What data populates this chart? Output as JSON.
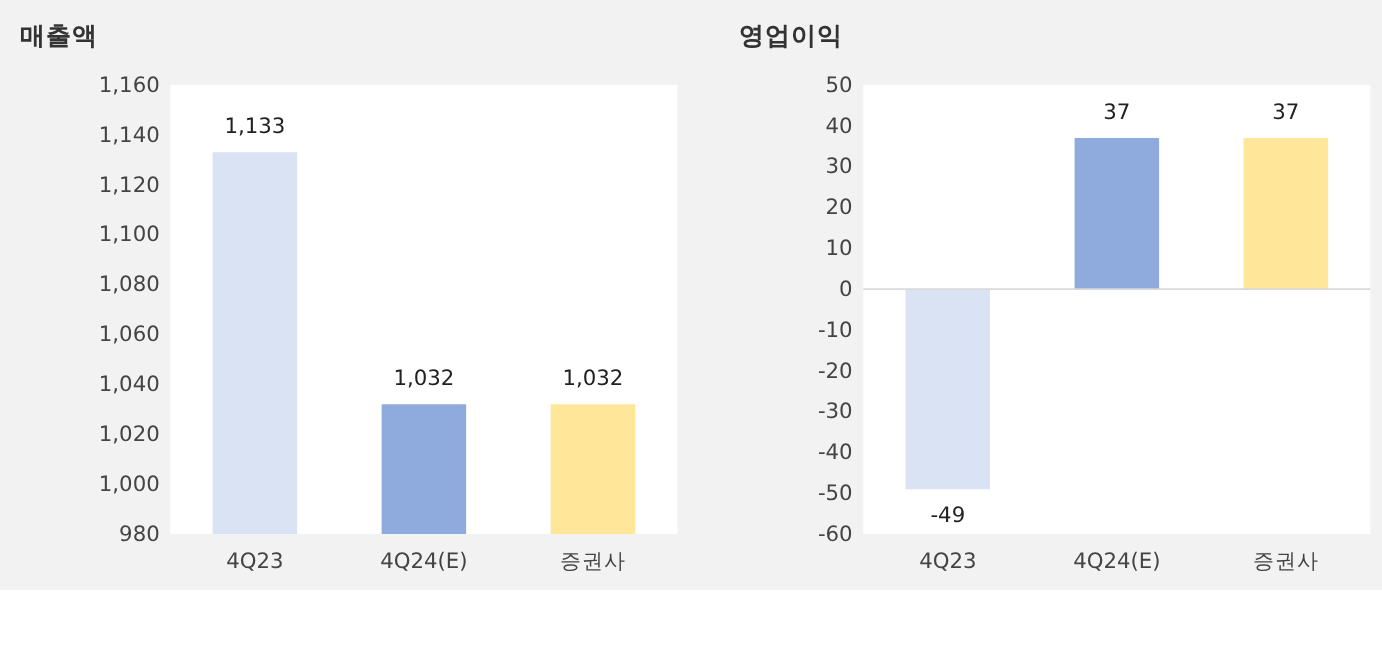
{
  "chart_data": [
    {
      "type": "bar",
      "title": "매출액",
      "categories": [
        "4Q23",
        "4Q24(E)",
        "증권사"
      ],
      "values": [
        1133,
        1032,
        1032
      ],
      "value_labels": [
        "1,133",
        "1,032",
        "1,032"
      ],
      "colors": [
        "#dae3f3",
        "#8faadc",
        "#ffe699"
      ],
      "ylim": [
        980,
        1160
      ],
      "yticks": [
        980,
        {
          "value": 1000,
          "label": "1,000"
        },
        {
          "value": 1020,
          "label": "1,020"
        },
        {
          "value": 1040,
          "label": "1,040"
        },
        {
          "value": 1060,
          "label": "1,060"
        },
        {
          "value": 1080,
          "label": "1,080"
        },
        {
          "value": 1100,
          "label": "1,100"
        },
        {
          "value": 1120,
          "label": "1,120"
        },
        {
          "value": 1140,
          "label": "1,140"
        },
        {
          "value": 1160,
          "label": "1,160"
        }
      ],
      "grid": false
    },
    {
      "type": "bar",
      "title": "영업이익",
      "categories": [
        "4Q23",
        "4Q24(E)",
        "증권사"
      ],
      "values": [
        -49,
        37,
        37
      ],
      "colors": [
        "#dae3f3",
        "#8faadc",
        "#ffe699"
      ],
      "ylim": [
        -60,
        50
      ],
      "yticks": [
        -60,
        -50,
        -40,
        -30,
        -20,
        -10,
        0,
        10,
        20,
        30,
        40,
        50
      ],
      "data_labels": true,
      "grid": false,
      "ref_lines": [
        {
          "axis": "y",
          "value": 0,
          "color": "#d9d9d9"
        }
      ]
    }
  ]
}
